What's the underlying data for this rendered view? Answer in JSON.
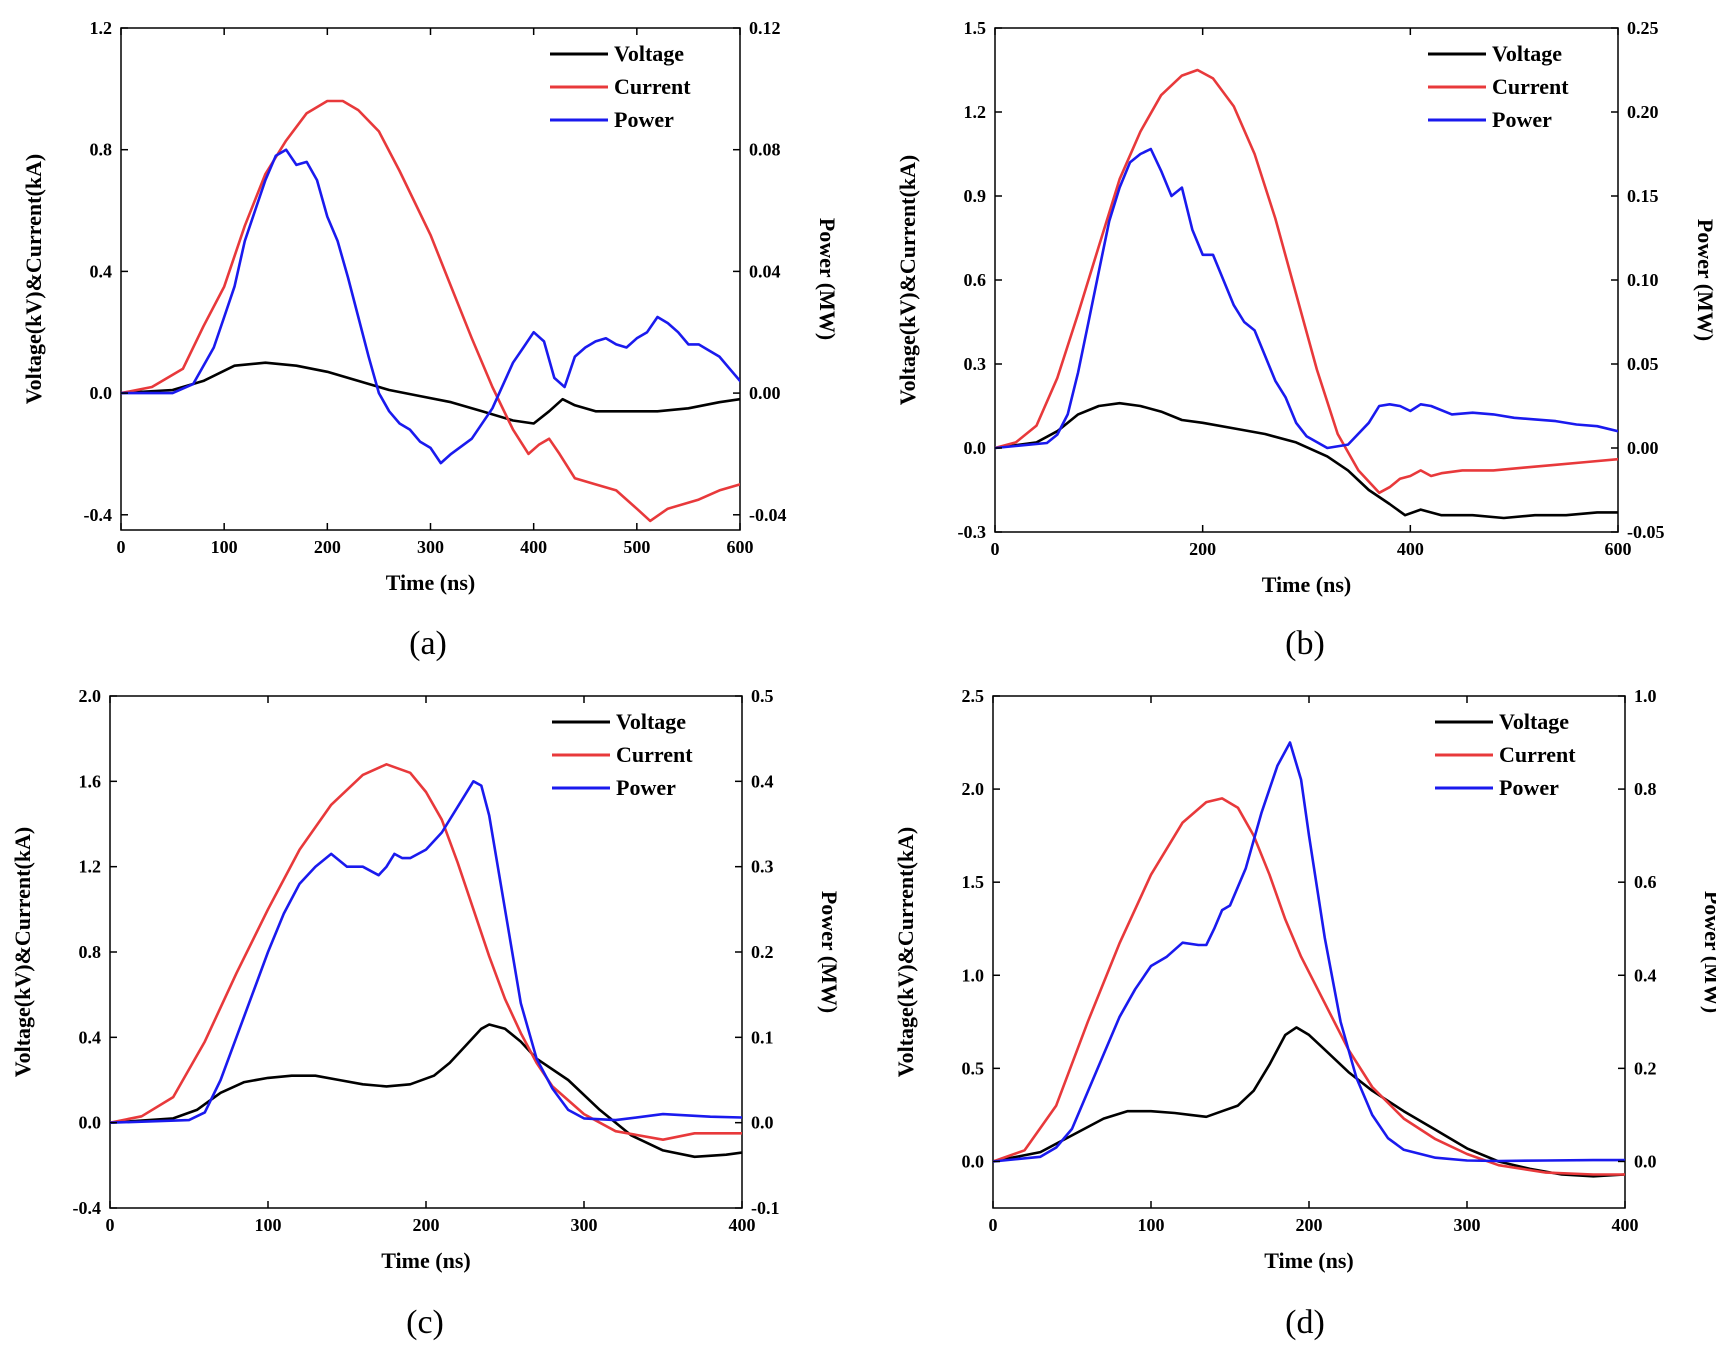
{
  "figure": {
    "panel_labels": [
      "(a)",
      "(b)",
      "(c)",
      "(d)"
    ]
  },
  "colors": {
    "voltage": "#000000",
    "current": "#e8393b",
    "power": "#1a1aee",
    "axis": "#000000"
  },
  "chart_data": [
    {
      "type": "line",
      "panel": "(a)",
      "xlabel": "Time (ns)",
      "ylabel": "Voltage(kV)&Current(kA)",
      "y2label": "Power (MW)",
      "xlim": [
        0,
        600
      ],
      "ylim": [
        -0.45,
        1.2
      ],
      "y2lim": [
        -0.045,
        0.12
      ],
      "xticks": [
        "0",
        "100",
        "200",
        "300",
        "400",
        "500",
        "600"
      ],
      "yticks": [
        "-0.4",
        "0.0",
        "0.4",
        "0.8",
        "1.2"
      ],
      "y2ticks": [
        "-0.04",
        "0.00",
        "0.04",
        "0.08",
        "0.12"
      ],
      "legend": [
        "Voltage",
        "Current",
        "Power"
      ],
      "legend_position": "top-right",
      "series": [
        {
          "name": "Voltage",
          "axis": "left",
          "x": [
            0,
            50,
            80,
            110,
            140,
            170,
            200,
            230,
            260,
            290,
            320,
            350,
            380,
            400,
            415,
            428,
            440,
            460,
            480,
            500,
            520,
            550,
            580,
            600
          ],
          "values": [
            0,
            0.01,
            0.04,
            0.09,
            0.1,
            0.09,
            0.07,
            0.04,
            0.01,
            -0.01,
            -0.03,
            -0.06,
            -0.09,
            -0.1,
            -0.06,
            -0.02,
            -0.04,
            -0.06,
            -0.06,
            -0.06,
            -0.06,
            -0.05,
            -0.03,
            -0.02
          ]
        },
        {
          "name": "Current",
          "axis": "left",
          "x": [
            0,
            30,
            60,
            80,
            100,
            120,
            140,
            160,
            180,
            200,
            215,
            230,
            250,
            270,
            300,
            320,
            340,
            360,
            380,
            395,
            405,
            415,
            425,
            440,
            460,
            480,
            500,
            513,
            530,
            560,
            580,
            600
          ],
          "values": [
            0,
            0.02,
            0.08,
            0.22,
            0.35,
            0.55,
            0.72,
            0.83,
            0.92,
            0.96,
            0.96,
            0.93,
            0.86,
            0.73,
            0.52,
            0.35,
            0.18,
            0.02,
            -0.12,
            -0.2,
            -0.17,
            -0.15,
            -0.2,
            -0.28,
            -0.3,
            -0.32,
            -0.38,
            -0.42,
            -0.38,
            -0.35,
            -0.32,
            -0.3
          ]
        },
        {
          "name": "Power",
          "axis": "right",
          "x": [
            0,
            50,
            70,
            90,
            100,
            110,
            120,
            130,
            140,
            150,
            160,
            170,
            180,
            190,
            200,
            210,
            220,
            230,
            240,
            250,
            260,
            270,
            280,
            290,
            300,
            310,
            320,
            340,
            360,
            380,
            390,
            400,
            410,
            420,
            430,
            440,
            450,
            460,
            470,
            480,
            490,
            500,
            510,
            520,
            530,
            540,
            550,
            560,
            570,
            580,
            590,
            600
          ],
          "values": [
            0,
            0,
            0.003,
            0.015,
            0.025,
            0.035,
            0.05,
            0.06,
            0.07,
            0.078,
            0.08,
            0.075,
            0.076,
            0.07,
            0.058,
            0.05,
            0.038,
            0.025,
            0.012,
            0.0,
            -0.006,
            -0.01,
            -0.012,
            -0.016,
            -0.018,
            -0.023,
            -0.02,
            -0.015,
            -0.005,
            0.01,
            0.015,
            0.02,
            0.017,
            0.005,
            0.002,
            0.012,
            0.015,
            0.017,
            0.018,
            0.016,
            0.015,
            0.018,
            0.02,
            0.025,
            0.023,
            0.02,
            0.016,
            0.016,
            0.014,
            0.012,
            0.008,
            0.004
          ]
        }
      ]
    },
    {
      "type": "line",
      "panel": "(b)",
      "xlabel": "Time (ns)",
      "ylabel": "Voltage(kV)&Current(kA)",
      "y2label": "Power (MW)",
      "xlim": [
        0,
        600
      ],
      "ylim": [
        -0.3,
        1.5
      ],
      "y2lim": [
        -0.05,
        0.25
      ],
      "xticks": [
        "0",
        "200",
        "400",
        "600"
      ],
      "yticks": [
        "-0.3",
        "0.0",
        "0.3",
        "0.6",
        "0.9",
        "1.2",
        "1.5"
      ],
      "y2ticks": [
        "-0.05",
        "0.00",
        "0.05",
        "0.10",
        "0.15",
        "0.20",
        "0.25"
      ],
      "legend": [
        "Voltage",
        "Current",
        "Power"
      ],
      "legend_position": "top-right",
      "series": [
        {
          "name": "Voltage",
          "axis": "left",
          "x": [
            0,
            40,
            60,
            80,
            100,
            120,
            140,
            160,
            180,
            200,
            230,
            260,
            290,
            320,
            340,
            360,
            380,
            395,
            410,
            430,
            460,
            490,
            520,
            550,
            580,
            600
          ],
          "values": [
            0,
            0.02,
            0.06,
            0.12,
            0.15,
            0.16,
            0.15,
            0.13,
            0.1,
            0.09,
            0.07,
            0.05,
            0.02,
            -0.03,
            -0.08,
            -0.15,
            -0.2,
            -0.24,
            -0.22,
            -0.24,
            -0.24,
            -0.25,
            -0.24,
            -0.24,
            -0.23,
            -0.23
          ]
        },
        {
          "name": "Current",
          "axis": "left",
          "x": [
            0,
            20,
            40,
            60,
            80,
            100,
            120,
            140,
            160,
            180,
            195,
            210,
            230,
            250,
            270,
            290,
            310,
            330,
            350,
            370,
            380,
            390,
            400,
            410,
            420,
            430,
            450,
            480,
            510,
            540,
            570,
            600
          ],
          "values": [
            0,
            0.02,
            0.08,
            0.25,
            0.48,
            0.72,
            0.96,
            1.13,
            1.26,
            1.33,
            1.35,
            1.32,
            1.22,
            1.05,
            0.82,
            0.55,
            0.28,
            0.05,
            -0.08,
            -0.16,
            -0.14,
            -0.11,
            -0.1,
            -0.08,
            -0.1,
            -0.09,
            -0.08,
            -0.08,
            -0.07,
            -0.06,
            -0.05,
            -0.04
          ]
        },
        {
          "name": "Power",
          "axis": "right",
          "x": [
            0,
            50,
            60,
            70,
            80,
            90,
            100,
            110,
            120,
            130,
            140,
            150,
            160,
            170,
            180,
            190,
            200,
            210,
            220,
            230,
            240,
            250,
            260,
            270,
            280,
            290,
            300,
            320,
            340,
            360,
            370,
            380,
            390,
            400,
            410,
            420,
            440,
            460,
            480,
            500,
            520,
            540,
            560,
            580,
            600
          ],
          "values": [
            0,
            0.003,
            0.008,
            0.02,
            0.045,
            0.075,
            0.105,
            0.135,
            0.155,
            0.17,
            0.175,
            0.178,
            0.165,
            0.15,
            0.155,
            0.13,
            0.115,
            0.115,
            0.1,
            0.085,
            0.075,
            0.07,
            0.055,
            0.04,
            0.03,
            0.015,
            0.007,
            0.0,
            0.002,
            0.015,
            0.025,
            0.026,
            0.025,
            0.022,
            0.026,
            0.025,
            0.02,
            0.021,
            0.02,
            0.018,
            0.017,
            0.016,
            0.014,
            0.013,
            0.01
          ]
        }
      ]
    },
    {
      "type": "line",
      "panel": "(c)",
      "xlabel": "Time (ns)",
      "ylabel": "Voltage(kV)&Current(kA)",
      "y2label": "Power (MW)",
      "xlim": [
        0,
        400
      ],
      "ylim": [
        -0.4,
        2.0
      ],
      "y2lim": [
        -0.1,
        0.5
      ],
      "xticks": [
        "0",
        "100",
        "200",
        "300",
        "400"
      ],
      "yticks": [
        "-0.4",
        "0.0",
        "0.4",
        "0.8",
        "1.2",
        "1.6",
        "2.0"
      ],
      "y2ticks": [
        "-0.1",
        "0.0",
        "0.1",
        "0.2",
        "0.3",
        "0.4",
        "0.5"
      ],
      "legend": [
        "Voltage",
        "Current",
        "Power"
      ],
      "legend_position": "top-right",
      "series": [
        {
          "name": "Voltage",
          "axis": "left",
          "x": [
            0,
            40,
            55,
            70,
            85,
            100,
            115,
            130,
            145,
            160,
            175,
            190,
            205,
            215,
            225,
            235,
            240,
            250,
            260,
            270,
            290,
            310,
            330,
            350,
            370,
            390,
            400
          ],
          "values": [
            0,
            0.02,
            0.06,
            0.14,
            0.19,
            0.21,
            0.22,
            0.22,
            0.2,
            0.18,
            0.17,
            0.18,
            0.22,
            0.28,
            0.36,
            0.44,
            0.46,
            0.44,
            0.38,
            0.3,
            0.2,
            0.06,
            -0.06,
            -0.13,
            -0.16,
            -0.15,
            -0.14
          ]
        },
        {
          "name": "Current",
          "axis": "left",
          "x": [
            0,
            20,
            40,
            60,
            80,
            100,
            120,
            140,
            160,
            175,
            190,
            200,
            210,
            220,
            230,
            240,
            250,
            260,
            270,
            280,
            300,
            320,
            350,
            370,
            400
          ],
          "values": [
            0,
            0.03,
            0.12,
            0.38,
            0.7,
            1.0,
            1.28,
            1.49,
            1.63,
            1.68,
            1.64,
            1.55,
            1.42,
            1.22,
            1.0,
            0.78,
            0.58,
            0.42,
            0.28,
            0.17,
            0.04,
            -0.04,
            -0.08,
            -0.05,
            -0.05
          ]
        },
        {
          "name": "Power",
          "axis": "right",
          "x": [
            0,
            50,
            60,
            70,
            80,
            90,
            100,
            110,
            120,
            130,
            140,
            150,
            160,
            170,
            175,
            180,
            185,
            190,
            200,
            210,
            220,
            230,
            235,
            240,
            250,
            260,
            270,
            280,
            290,
            300,
            320,
            350,
            380,
            400
          ],
          "values": [
            0,
            0.003,
            0.012,
            0.05,
            0.1,
            0.15,
            0.2,
            0.245,
            0.28,
            0.3,
            0.315,
            0.3,
            0.3,
            0.29,
            0.3,
            0.315,
            0.31,
            0.31,
            0.32,
            0.34,
            0.37,
            0.4,
            0.395,
            0.36,
            0.25,
            0.14,
            0.075,
            0.04,
            0.015,
            0.005,
            0.003,
            0.01,
            0.007,
            0.006
          ]
        }
      ]
    },
    {
      "type": "line",
      "panel": "(d)",
      "xlabel": "Time (ns)",
      "ylabel": "Voltage(kV)&Current(kA)",
      "y2label": "Power (MW)",
      "xlim": [
        0,
        400
      ],
      "ylim": [
        -0.25,
        2.5
      ],
      "y2lim": [
        -0.1,
        1.0
      ],
      "xticks": [
        "0",
        "100",
        "200",
        "300",
        "400"
      ],
      "yticks": [
        "0.0",
        "0.5",
        "1.0",
        "1.5",
        "2.0",
        "2.5"
      ],
      "y2ticks": [
        "0.0",
        "0.2",
        "0.4",
        "0.6",
        "0.8",
        "1.0"
      ],
      "legend": [
        "Voltage",
        "Current",
        "Power"
      ],
      "legend_position": "top-right",
      "series": [
        {
          "name": "Voltage",
          "axis": "left",
          "x": [
            0,
            30,
            50,
            70,
            85,
            100,
            115,
            125,
            135,
            145,
            155,
            165,
            175,
            185,
            192,
            200,
            210,
            225,
            240,
            260,
            280,
            300,
            320,
            340,
            360,
            380,
            400
          ],
          "values": [
            0,
            0.05,
            0.14,
            0.23,
            0.27,
            0.27,
            0.26,
            0.25,
            0.24,
            0.27,
            0.3,
            0.38,
            0.52,
            0.68,
            0.72,
            0.68,
            0.6,
            0.48,
            0.38,
            0.27,
            0.17,
            0.07,
            0.0,
            -0.04,
            -0.07,
            -0.08,
            -0.07
          ]
        },
        {
          "name": "Current",
          "axis": "left",
          "x": [
            0,
            20,
            40,
            60,
            80,
            100,
            120,
            135,
            145,
            155,
            165,
            175,
            185,
            195,
            210,
            225,
            240,
            260,
            280,
            300,
            320,
            350,
            380,
            400
          ],
          "values": [
            0,
            0.06,
            0.3,
            0.75,
            1.17,
            1.54,
            1.82,
            1.93,
            1.95,
            1.9,
            1.75,
            1.54,
            1.3,
            1.1,
            0.85,
            0.6,
            0.4,
            0.23,
            0.12,
            0.04,
            -0.02,
            -0.06,
            -0.07,
            -0.07
          ]
        },
        {
          "name": "Power",
          "axis": "right",
          "x": [
            0,
            30,
            40,
            50,
            60,
            70,
            80,
            90,
            100,
            110,
            120,
            130,
            135,
            140,
            145,
            150,
            160,
            170,
            180,
            188,
            195,
            200,
            210,
            220,
            230,
            240,
            250,
            260,
            280,
            300,
            320,
            350,
            380,
            400
          ],
          "values": [
            0,
            0.01,
            0.03,
            0.07,
            0.15,
            0.23,
            0.31,
            0.37,
            0.42,
            0.44,
            0.47,
            0.465,
            0.465,
            0.5,
            0.54,
            0.55,
            0.63,
            0.75,
            0.85,
            0.9,
            0.82,
            0.7,
            0.48,
            0.3,
            0.18,
            0.1,
            0.05,
            0.025,
            0.008,
            0.002,
            0.001,
            0.002,
            0.003,
            0.003
          ]
        }
      ]
    }
  ]
}
